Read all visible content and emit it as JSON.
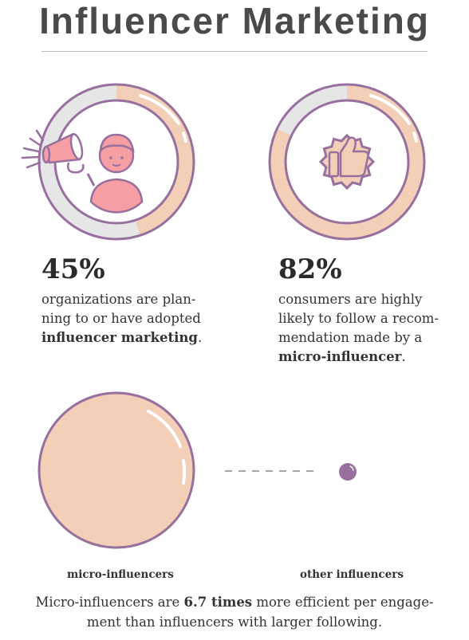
{
  "title": "Influencer Marketing",
  "colors": {
    "peach": "#f3cfb8",
    "purple": "#98709f",
    "grey": "#e6e6e6",
    "pink": "#f59ea4"
  },
  "stats": [
    {
      "value": "45%",
      "fraction": 0.45,
      "lines": [
        {
          "pre": "organizations are plan-",
          "bold": "",
          "post": ""
        },
        {
          "pre": "ning to or have adopted",
          "bold": "",
          "post": ""
        },
        {
          "pre": "",
          "bold": "influencer marketing",
          "post": "."
        }
      ],
      "icon": "megaphone-person-icon"
    },
    {
      "value": "82%",
      "fraction": 0.82,
      "lines": [
        {
          "pre": "consumers are highly",
          "bold": "",
          "post": ""
        },
        {
          "pre": "likely to follow a recom-",
          "bold": "",
          "post": ""
        },
        {
          "pre": "mendation made by a",
          "bold": "",
          "post": ""
        },
        {
          "pre": "",
          "bold": "micro-influencer",
          "post": "."
        }
      ],
      "icon": "thumbs-up-badge-icon"
    }
  ],
  "comparison": {
    "micro_label": "micro-influencers",
    "other_label": "other influencers",
    "ratio": 6.7
  },
  "footer": {
    "line1_pre": "Micro-influencers are ",
    "line1_bold": "6.7 times",
    "line1_post": " more efficient per engage-",
    "line2": "ment than influencers with larger following."
  }
}
